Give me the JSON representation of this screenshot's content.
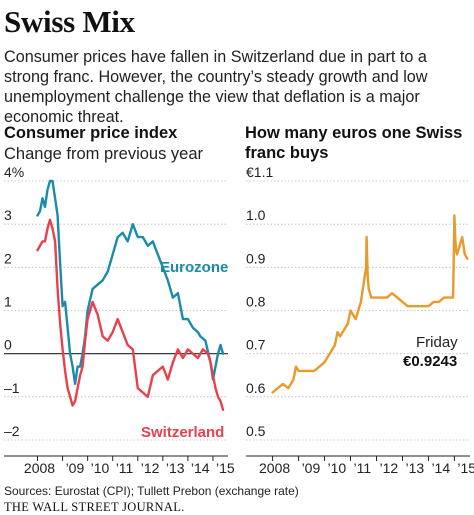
{
  "header": {
    "title": "Swiss Mix",
    "dek": "Consumer prices have fallen in Switzerland due in part to a strong franc. However, the country’s steady growth and low unemployment challenge the view that deflation is a major economic threat."
  },
  "colors": {
    "eurozone": "#1a8ba8",
    "switzerland": "#e8414e",
    "chf_eur": "#e89a2a"
  },
  "chart_data": [
    {
      "type": "line",
      "title": "Consumer price index",
      "subtitle": "Change from previous year",
      "x_unit": "year",
      "xlim": [
        2007.9,
        2015.6
      ],
      "ylim": [
        -2,
        4
      ],
      "y_ticks": [
        4,
        3,
        2,
        1,
        0,
        -1,
        -2
      ],
      "y_tick_labels": [
        "4%",
        "3",
        "2",
        "1",
        "0",
        "–1",
        "–2"
      ],
      "x_ticks": [
        2008,
        2009,
        2010,
        2011,
        2012,
        2013,
        2014,
        2015
      ],
      "x_tick_labels": [
        "2008",
        "’09",
        "’10",
        "’11",
        "’12",
        "’13",
        "’14",
        "’15"
      ],
      "series": [
        {
          "name": "Eurozone",
          "color": "#1a8ba8",
          "x": [
            2008.0,
            2008.1,
            2008.2,
            2008.3,
            2008.4,
            2008.5,
            2008.6,
            2008.7,
            2008.8,
            2008.9,
            2009.0,
            2009.1,
            2009.2,
            2009.3,
            2009.4,
            2009.5,
            2009.6,
            2009.7,
            2009.8,
            2009.9,
            2010.0,
            2010.2,
            2010.4,
            2010.6,
            2010.8,
            2011.0,
            2011.2,
            2011.4,
            2011.6,
            2011.8,
            2012.0,
            2012.2,
            2012.4,
            2012.6,
            2012.8,
            2013.0,
            2013.2,
            2013.4,
            2013.6,
            2013.8,
            2014.0,
            2014.2,
            2014.4,
            2014.5,
            2014.7,
            2014.9,
            2015.0,
            2015.1,
            2015.2,
            2015.3,
            2015.4
          ],
          "values": [
            3.2,
            3.3,
            3.6,
            3.4,
            3.8,
            4.0,
            4.0,
            3.6,
            3.2,
            2.1,
            1.1,
            1.2,
            0.6,
            0.0,
            -0.3,
            -0.7,
            -0.3,
            -0.3,
            0.0,
            0.4,
            1.0,
            1.5,
            1.6,
            1.7,
            1.9,
            2.3,
            2.7,
            2.8,
            2.6,
            3.0,
            2.7,
            2.7,
            2.5,
            2.6,
            2.3,
            2.0,
            1.7,
            1.3,
            1.4,
            0.8,
            0.8,
            0.6,
            0.5,
            0.4,
            0.3,
            -0.2,
            -0.6,
            -0.3,
            0.0,
            0.2,
            0.0
          ]
        },
        {
          "name": "Switzerland",
          "color": "#e8414e",
          "x": [
            2008.0,
            2008.1,
            2008.2,
            2008.3,
            2008.4,
            2008.5,
            2008.6,
            2008.7,
            2008.8,
            2008.9,
            2009.0,
            2009.1,
            2009.2,
            2009.3,
            2009.4,
            2009.5,
            2009.6,
            2009.7,
            2009.8,
            2009.9,
            2010.0,
            2010.2,
            2010.4,
            2010.6,
            2010.8,
            2011.0,
            2011.2,
            2011.4,
            2011.6,
            2011.8,
            2012.0,
            2012.2,
            2012.4,
            2012.6,
            2012.8,
            2013.0,
            2013.2,
            2013.4,
            2013.6,
            2013.8,
            2014.0,
            2014.2,
            2014.4,
            2014.6,
            2014.8,
            2014.9,
            2015.0,
            2015.1,
            2015.2,
            2015.3,
            2015.4
          ],
          "values": [
            2.4,
            2.5,
            2.6,
            2.6,
            2.9,
            3.1,
            2.9,
            2.6,
            1.5,
            0.7,
            0.1,
            -0.4,
            -0.8,
            -1.0,
            -1.2,
            -1.1,
            -0.8,
            -0.5,
            -0.3,
            0.3,
            0.8,
            1.2,
            0.9,
            0.4,
            0.3,
            0.5,
            0.8,
            0.5,
            0.2,
            0.1,
            -0.8,
            -0.9,
            -1.0,
            -0.5,
            -0.4,
            -0.3,
            -0.6,
            -0.2,
            0.1,
            -0.1,
            0.1,
            0.0,
            -0.1,
            0.1,
            0.0,
            -0.2,
            -0.5,
            -0.8,
            -1.0,
            -1.1,
            -1.3
          ]
        }
      ]
    },
    {
      "type": "line",
      "title": "How many euros one Swiss franc buys",
      "x_unit": "year",
      "xlim": [
        2007.9,
        2015.6
      ],
      "ylim": [
        0.5,
        1.1
      ],
      "y_ticks": [
        1.1,
        1.0,
        0.9,
        0.8,
        0.7,
        0.6,
        0.5
      ],
      "y_tick_labels": [
        "€1.1",
        "1.0",
        "0.9",
        "0.8",
        "0.7",
        "0.6",
        "0.5"
      ],
      "x_ticks": [
        2008,
        2009,
        2010,
        2011,
        2012,
        2013,
        2014,
        2015
      ],
      "x_tick_labels": [
        "2008",
        "’09",
        "’10",
        "’11",
        "’12",
        "’13",
        "’14",
        "’15"
      ],
      "annotation": {
        "label": "Friday",
        "value_label": "€0.9243"
      },
      "series": [
        {
          "color": "#e89a2a",
          "x": [
            2008.0,
            2008.2,
            2008.4,
            2008.6,
            2008.8,
            2008.9,
            2009.0,
            2009.2,
            2009.4,
            2009.6,
            2009.8,
            2010.0,
            2010.2,
            2010.4,
            2010.5,
            2010.6,
            2010.8,
            2010.9,
            2011.0,
            2011.2,
            2011.4,
            2011.5,
            2011.6,
            2011.62,
            2011.66,
            2011.7,
            2011.8,
            2012.0,
            2012.2,
            2012.4,
            2012.6,
            2012.8,
            2013.0,
            2013.2,
            2013.4,
            2013.6,
            2013.8,
            2014.0,
            2014.2,
            2014.4,
            2014.6,
            2014.8,
            2014.95,
            2015.0,
            2015.03,
            2015.06,
            2015.1,
            2015.2,
            2015.3,
            2015.4,
            2015.5
          ],
          "values": [
            0.61,
            0.62,
            0.63,
            0.62,
            0.64,
            0.67,
            0.66,
            0.66,
            0.66,
            0.66,
            0.67,
            0.68,
            0.7,
            0.72,
            0.75,
            0.74,
            0.76,
            0.77,
            0.8,
            0.78,
            0.82,
            0.86,
            0.9,
            0.97,
            0.88,
            0.85,
            0.83,
            0.83,
            0.83,
            0.83,
            0.84,
            0.83,
            0.82,
            0.81,
            0.81,
            0.81,
            0.81,
            0.81,
            0.82,
            0.82,
            0.83,
            0.83,
            0.83,
            1.02,
            0.97,
            0.94,
            0.93,
            0.95,
            0.97,
            0.93,
            0.92
          ]
        }
      ]
    }
  ],
  "labels": {
    "eurozone_label": "Eurozone",
    "switzerland_label": "Switzerland"
  },
  "footer": {
    "source": "Sources: Eurostat (CPI); Tullett Prebon (exchange rate)",
    "credit": "THE WALL STREET JOURNAL."
  }
}
